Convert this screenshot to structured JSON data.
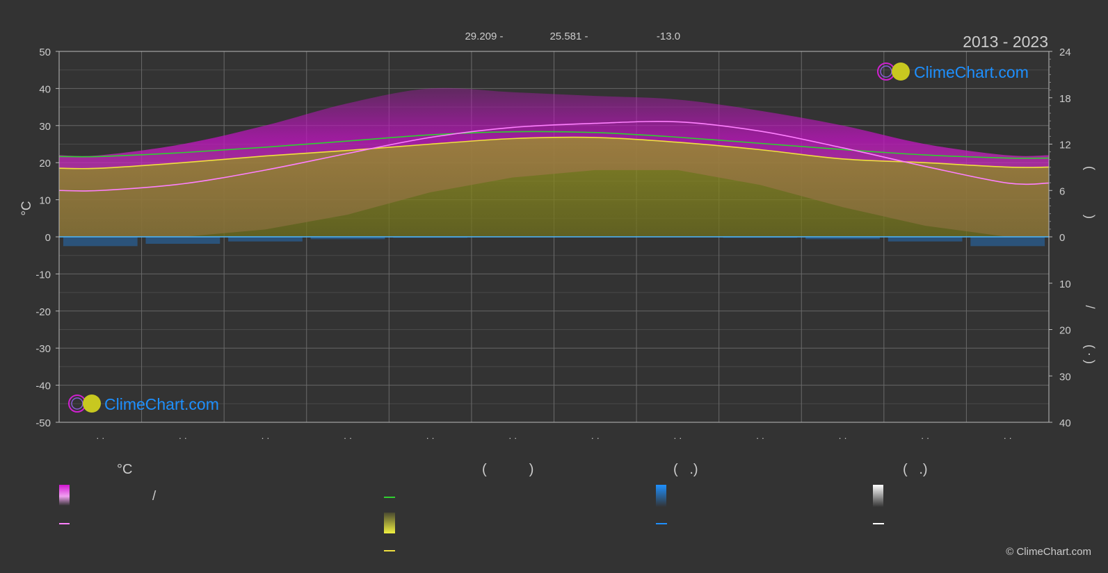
{
  "header": {
    "period": "2013 - 2023",
    "top_values": [
      "29.209 -",
      "25.581 -",
      "-13.0"
    ]
  },
  "brand": {
    "name": "ClimeChart.com",
    "copyright": "© ClimeChart.com"
  },
  "colors": {
    "background": "#333333",
    "grid": "#5f5f5f",
    "temp_range": "#d216d2",
    "daylight": "#30d030",
    "sunshine": "#b4b42a",
    "sunshine_line": "#f0e040",
    "max_temp_line": "#ff80ff",
    "rain": "#1e90ff",
    "zero_line": "#4db8ff"
  },
  "legend": {
    "heading_temperature": "°C",
    "heading_sun": "(           )",
    "heading_rain": "(   .)",
    "heading_snow": "(   .)",
    "temp_range_text": "/"
  },
  "chart_data": {
    "type": "area",
    "title": "",
    "xlabel": "",
    "ylabel": "°C",
    "ylabel_right_fragments": [
      "(",
      ")",
      "/",
      "(   ·   )"
    ],
    "x_tick_labels": [
      "· ·",
      "· ·",
      "· ·",
      "· ·",
      "· ·",
      "· ·",
      "· ·",
      "· ·",
      "· ·",
      "· ·",
      "· ·",
      "· ·"
    ],
    "ylim": [
      -50,
      50
    ],
    "yticks": [
      50,
      40,
      30,
      20,
      10,
      0,
      -10,
      -20,
      -30,
      -40,
      -50
    ],
    "right_axis_top": {
      "range": [
        0,
        24
      ],
      "ticks": [
        24,
        18,
        12,
        6,
        0
      ]
    },
    "right_axis_bottom": {
      "range": [
        0,
        40
      ],
      "ticks": [
        10,
        20,
        30,
        40
      ]
    },
    "grid": true,
    "months": 12,
    "series": [
      {
        "key": "max_temp",
        "values": [
          12.5,
          14.3,
          18.0,
          22.5,
          26.8,
          29.5,
          30.6,
          31.0,
          28.5,
          24.0,
          19.0,
          14.5
        ]
      },
      {
        "key": "sunshine_temp",
        "values": [
          18.5,
          20.0,
          21.8,
          23.3,
          25.0,
          26.5,
          26.8,
          25.5,
          23.5,
          21.0,
          20.0,
          18.8
        ]
      },
      {
        "key": "daylight_hours",
        "values": [
          10.4,
          10.9,
          11.6,
          12.4,
          13.2,
          13.6,
          13.5,
          12.9,
          12.1,
          11.3,
          10.6,
          10.2
        ]
      }
    ],
    "temp_band": {
      "low": [
        0,
        0,
        2,
        6,
        12,
        16,
        18,
        18,
        14,
        8,
        3,
        0
      ],
      "high": [
        22,
        25,
        30,
        36,
        40,
        39,
        38,
        37,
        34,
        30,
        25,
        22
      ]
    },
    "rain_mm": [
      2,
      1.5,
      1,
      0.5,
      0.2,
      0,
      0,
      0,
      0.2,
      0.5,
      1,
      2
    ]
  }
}
